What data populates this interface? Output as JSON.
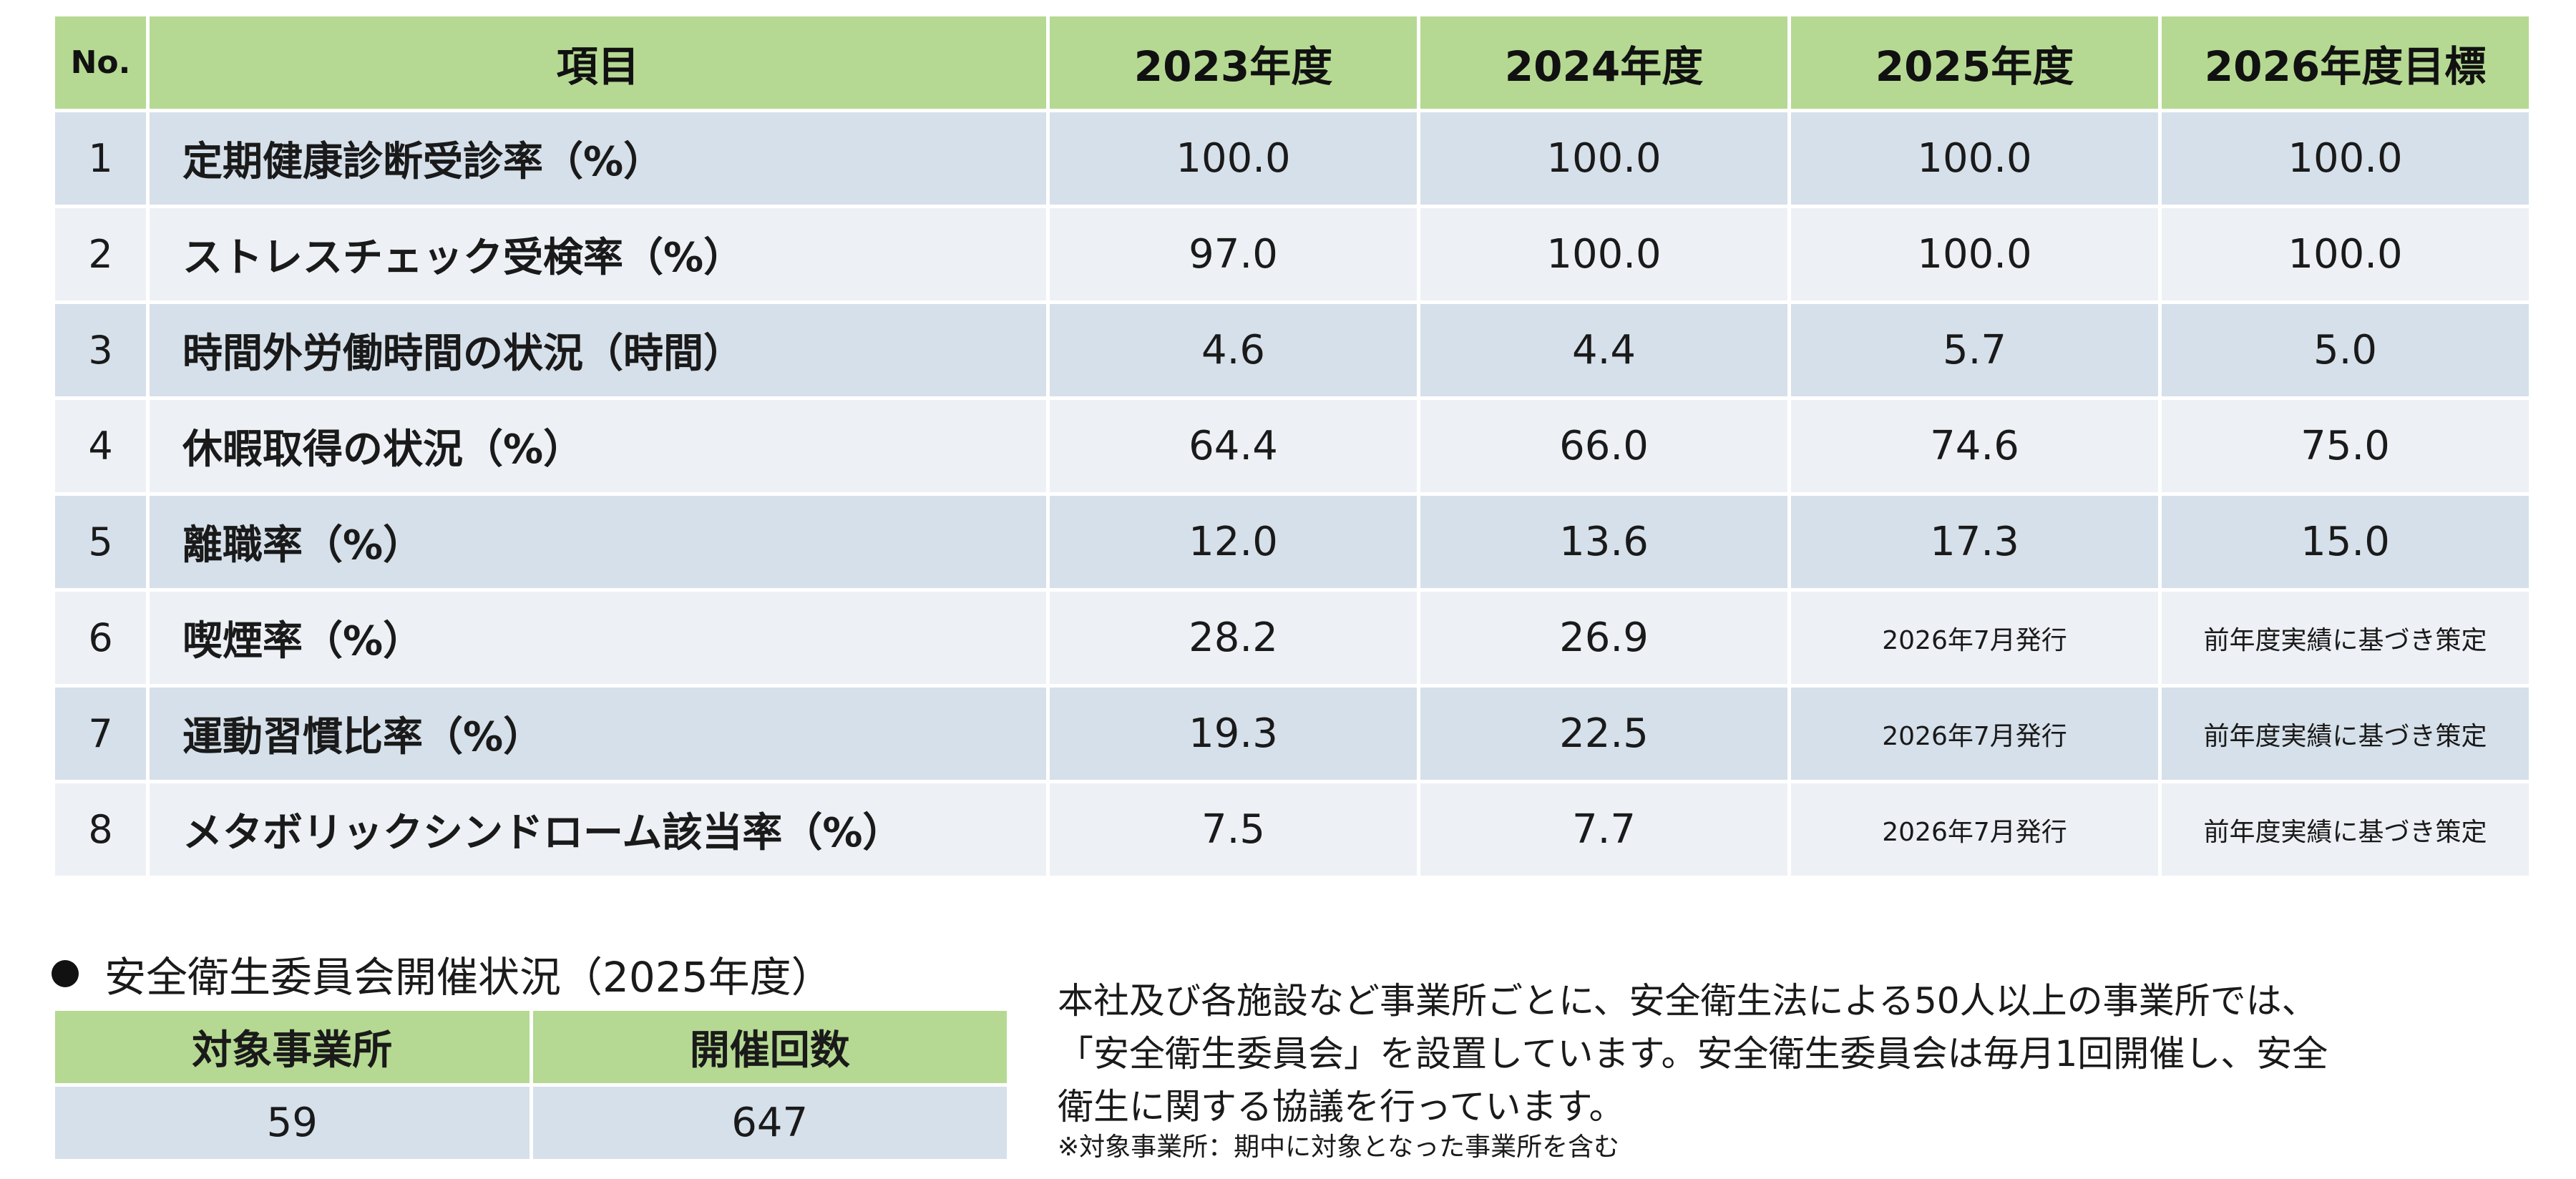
{
  "health_table": {
    "headers": {
      "no": "No.",
      "item": "項目",
      "y2023": "2023年度",
      "y2024": "2024年度",
      "y2025": "2025年度",
      "y2026": "2026年度目標"
    },
    "rows": [
      {
        "no": "1",
        "item": "定期健康診断受診率（%）",
        "y2023": "100.0",
        "y2024": "100.0",
        "y2025": "100.0",
        "y2026": "100.0"
      },
      {
        "no": "2",
        "item": "ストレスチェック受検率（%）",
        "y2023": "97.0",
        "y2024": "100.0",
        "y2025": "100.0",
        "y2026": "100.0"
      },
      {
        "no": "3",
        "item": "時間外労働時間の状況（時間）",
        "y2023": "4.6",
        "y2024": "4.4",
        "y2025": "5.7",
        "y2026": "5.0"
      },
      {
        "no": "4",
        "item": "休暇取得の状況（%）",
        "y2023": "64.4",
        "y2024": "66.0",
        "y2025": "74.6",
        "y2026": "75.0"
      },
      {
        "no": "5",
        "item": "離職率（%）",
        "y2023": "12.0",
        "y2024": "13.6",
        "y2025": "17.3",
        "y2026": "15.0"
      },
      {
        "no": "6",
        "item": "喫煙率（%）",
        "y2023": "28.2",
        "y2024": "26.9",
        "y2025": "2026年7月発行",
        "y2026": "前年度実績に基づき策定"
      },
      {
        "no": "7",
        "item": "運動習慣比率（%）",
        "y2023": "19.3",
        "y2024": "22.5",
        "y2025": "2026年7月発行",
        "y2026": "前年度実績に基づき策定"
      },
      {
        "no": "8",
        "item": "メタボリックシンドローム該当率（%）",
        "y2023": "7.5",
        "y2024": "7.7",
        "y2025": "2026年7月発行",
        "y2026": "前年度実績に基づき策定"
      }
    ]
  },
  "committee": {
    "title": "安全衛生委員会開催状況（2025年度）",
    "headers": {
      "sites": "対象事業所",
      "meetings": "開催回数"
    },
    "values": {
      "sites": "59",
      "meetings": "647"
    }
  },
  "description": {
    "lines": [
      "本社及び各施設など事業所ごとに、安全衛生法による50人以上の事業所では、",
      "「安全衛生委員会」を設置しています。安全衛生委員会は毎月1回開催し、安全",
      "衛生に関する協議を行っています。"
    ],
    "note": "※対象事業所：期中に対象となった事業所を含む"
  }
}
